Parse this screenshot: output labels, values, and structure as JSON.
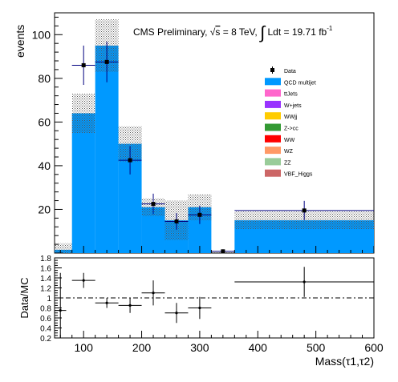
{
  "chart_data": [
    {
      "type": "bar",
      "title": "CMS Preliminary, √s = 8 TeV, ∫ Ldt = 19.71 fb⁻¹",
      "title_parts": {
        "prefix": "CMS Preliminary, ",
        "sqrt_sym": "√",
        "s": "s",
        "energy": " = 8 TeV, ",
        "integral_sym": "∫",
        "lumi": " Ldt = 19.71 fb",
        "lumi_exp": "-1"
      },
      "ylabel": "events",
      "xlim": [
        50,
        600
      ],
      "ylim": [
        0,
        110
      ],
      "y_ticks": [
        "20",
        "40",
        "60",
        "80",
        "100"
      ],
      "y_tick_values": [
        20,
        40,
        60,
        80,
        100
      ],
      "bins": [
        [
          50,
          80
        ],
        [
          80,
          120
        ],
        [
          120,
          160
        ],
        [
          160,
          200
        ],
        [
          200,
          240
        ],
        [
          240,
          280
        ],
        [
          280,
          320
        ],
        [
          320,
          360
        ],
        [
          360,
          600
        ]
      ],
      "series": [
        {
          "name": "QCD multijet",
          "values": [
            1.5,
            64,
            95,
            50,
            21,
            15,
            21,
            0,
            15
          ]
        }
      ],
      "uncertainty": {
        "upper": [
          4.5,
          73,
          107,
          58,
          25,
          24,
          27,
          1,
          19
        ]
      },
      "data_points": {
        "name": "Data",
        "x": [
          100,
          140,
          180,
          220,
          260,
          300,
          340,
          480
        ],
        "y": [
          86,
          87.5,
          42.5,
          22.5,
          14.5,
          17.5,
          0.8,
          19.5
        ],
        "xerr": [
          20,
          20,
          20,
          20,
          20,
          20,
          20,
          120
        ],
        "yerr": [
          9,
          9.3,
          6.5,
          4.7,
          3.8,
          4.2,
          0.9,
          4.4
        ]
      },
      "legend_items": [
        {
          "label": "Data",
          "kind": "marker",
          "color": "#000000"
        },
        {
          "label": "QCD multijet",
          "kind": "box",
          "color": "#0099ff"
        },
        {
          "label": "ttJets",
          "kind": "box",
          "color": "#ff66cc"
        },
        {
          "label": "W+jets",
          "kind": "box",
          "color": "#9933ff"
        },
        {
          "label": "WWjj",
          "kind": "box",
          "color": "#ffcc00"
        },
        {
          "label": "Z->cc",
          "kind": "box",
          "color": "#339933"
        },
        {
          "label": "WW",
          "kind": "box",
          "color": "#ff0000"
        },
        {
          "label": "WZ",
          "kind": "box",
          "color": "#ff9966"
        },
        {
          "label": "ZZ",
          "kind": "box",
          "color": "#99cc99"
        },
        {
          "label": "VBF_Higgs",
          "kind": "box",
          "color": "#cc6666"
        }
      ],
      "legend_position": "right",
      "colors": {
        "qcd": "#0099ff",
        "data": "#000000",
        "error_band": "#666666",
        "data_err": "#000080"
      }
    },
    {
      "type": "scatter",
      "ylabel": "Data/MC",
      "xlabel": "Mass(τ1,τ2)",
      "xlim": [
        50,
        600
      ],
      "ylim": [
        0.2,
        1.8
      ],
      "x_ticks": [
        "100",
        "200",
        "300",
        "400",
        "500",
        "600"
      ],
      "x_tick_values": [
        100,
        200,
        300,
        400,
        500,
        600
      ],
      "y_ticks": [
        "0.2",
        "0.4",
        "0.6",
        "0.8",
        "1",
        "1.2",
        "1.4",
        "1.6",
        "1.8"
      ],
      "y_tick_values": [
        0.2,
        0.4,
        0.6,
        0.8,
        1.0,
        1.2,
        1.4,
        1.6,
        1.8
      ],
      "reference_line": 1.0,
      "points": {
        "x": [
          60,
          100,
          140,
          180,
          220,
          260,
          300,
          480
        ],
        "y": [
          0.75,
          1.35,
          0.9,
          0.85,
          1.1,
          0.7,
          0.8,
          1.32
        ],
        "xerr": [
          10,
          20,
          20,
          20,
          20,
          20,
          20,
          120
        ],
        "yerr_low": [
          0.55,
          0.15,
          0.1,
          0.15,
          0.25,
          0.2,
          0.22,
          0.3
        ],
        "yerr_high": [
          0.75,
          0.15,
          0.1,
          0.15,
          0.25,
          0.2,
          0.22,
          0.3
        ]
      }
    }
  ]
}
